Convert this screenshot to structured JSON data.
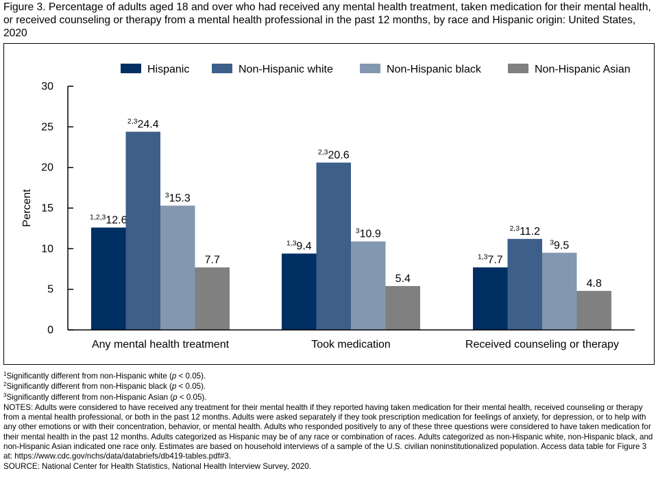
{
  "title": "Figure 3. Percentage of adults aged 18 and over who had received any mental health treatment, taken medication for their mental health, or received counseling or therapy from a mental health professional in the past 12 months, by race and Hispanic origin: United States, 2020",
  "chart_data": {
    "type": "bar",
    "ylabel": "Percent",
    "ylim": [
      0,
      30
    ],
    "yticks": [
      "0",
      "5",
      "10",
      "15",
      "20",
      "25",
      "30"
    ],
    "legend_position": "top-right",
    "grid": false,
    "categories": [
      "Any mental health treatment",
      "Took medication",
      "Received counseling or therapy"
    ],
    "series": [
      {
        "name": "Hispanic",
        "color": "#002f63",
        "values": [
          12.6,
          9.4,
          7.7
        ],
        "labels": [
          "12.6",
          "9.4",
          "7.7"
        ],
        "sups": [
          "1,2,3",
          "1,3",
          "1,3"
        ]
      },
      {
        "name": "Non-Hispanic white",
        "color": "#3e5f8a",
        "values": [
          24.4,
          20.6,
          11.2
        ],
        "labels": [
          "24.4",
          "20.6",
          "11.2"
        ],
        "sups": [
          "2,3",
          "2,3",
          "2,3"
        ]
      },
      {
        "name": "Non-Hispanic black",
        "color": "#8497b0",
        "values": [
          15.3,
          10.9,
          9.5
        ],
        "labels": [
          "15.3",
          "10.9",
          "9.5"
        ],
        "sups": [
          "3",
          "3",
          "3"
        ]
      },
      {
        "name": "Non-Hispanic Asian",
        "color": "#808080",
        "values": [
          7.7,
          5.4,
          4.8
        ],
        "labels": [
          "7.7",
          "5.4",
          "4.8"
        ],
        "sups": [
          "",
          "",
          ""
        ]
      }
    ]
  },
  "footnotes": {
    "f1_sup": "1",
    "f1_text": "Significantly different from non-Hispanic white (",
    "f2_sup": "2",
    "f2_text": "Significantly different from non-Hispanic black (",
    "f3_sup": "3",
    "f3_text": "Significantly different from non-Hispanic Asian (",
    "p_symbol": "p",
    "p_tail": " < 0.05).",
    "notes": "NOTES: Adults were considered to have received any treatment for their mental health if they reported having taken medication for their mental health, received counseling or therapy from a mental health professional, or both in the past 12 months. Adults were asked separately if they took prescription medication for feelings of anxiety, for depression, or to help with any other emotions or with their concentration, behavior, or mental health. Adults who responded positively to any of these three questions were considered to have taken medication for their mental health in the past 12 months. Adults categorized as Hispanic may be of any race or combination of races. Adults categorized as non-Hispanic white, non-Hispanic black, and non-Hispanic Asian indicated one race only. Estimates are based on household interviews of a sample of the U.S. civilian noninstitutionalized population. Access data table for Figure 3 at: https://www.cdc.gov/nchs/data/databriefs/db419-tables.pdf#3.",
    "source": "SOURCE: National Center for Health Statistics, National Health Interview Survey, 2020."
  }
}
